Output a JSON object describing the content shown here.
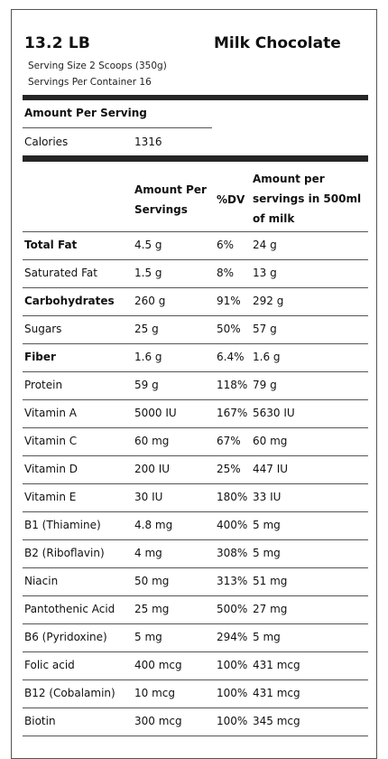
{
  "header": {
    "weight": "13.2 LB",
    "flavor": "Milk Chocolate",
    "serving_size": "Serving Size 2 Scoops (350g)",
    "servings_per_container": "Servings Per Container 16"
  },
  "amount_per_serving_label": "Amount Per Serving",
  "calories": {
    "label": "Calories",
    "value": "1316"
  },
  "columns": {
    "amount": [
      "Amount Per",
      "Servings"
    ],
    "dv": "%DV",
    "milk": [
      "Amount per",
      "servings in 500ml",
      "of milk"
    ]
  },
  "rows": [
    {
      "name": "Total Fat",
      "amount": "4.5 g",
      "dv": "6%",
      "milk": "24 g",
      "bold": true
    },
    {
      "name": "Saturated Fat",
      "amount": "1.5 g",
      "dv": "8%",
      "milk": "13 g",
      "bold": false
    },
    {
      "name": "Carbohydrates",
      "amount": "260 g",
      "dv": "91%",
      "milk": "292 g",
      "bold": true
    },
    {
      "name": "Sugars",
      "amount": "25 g",
      "dv": "50%",
      "milk": "57 g",
      "bold": false
    },
    {
      "name": "Fiber",
      "amount": "1.6 g",
      "dv": "6.4%",
      "milk": "1.6 g",
      "bold": true
    },
    {
      "name": "Protein",
      "amount": "59 g",
      "dv": "118%",
      "milk": "79 g",
      "bold": false
    },
    {
      "name": "Vitamin A",
      "amount": "5000 IU",
      "dv": "167%",
      "milk": "5630 IU",
      "bold": false
    },
    {
      "name": "Vitamin C",
      "amount": "60 mg",
      "dv": "67%",
      "milk": "60 mg",
      "bold": false
    },
    {
      "name": "Vitamin D",
      "amount": "200 IU",
      "dv": "25%",
      "milk": "447 IU",
      "bold": false
    },
    {
      "name": "Vitamin E",
      "amount": "30 IU",
      "dv": "180%",
      "milk": "33 IU",
      "bold": false
    },
    {
      "name": "B1 (Thiamine)",
      "amount": "4.8 mg",
      "dv": "400%",
      "milk": "5 mg",
      "bold": false
    },
    {
      "name": "B2 (Riboflavin)",
      "amount": "4 mg",
      "dv": "308%",
      "milk": "5 mg",
      "bold": false
    },
    {
      "name": "Niacin",
      "amount": "50 mg",
      "dv": "313%",
      "milk": "51 mg",
      "bold": false
    },
    {
      "name": "Pantothenic Acid",
      "amount": "25 mg",
      "dv": "500%",
      "milk": "27 mg",
      "bold": false
    },
    {
      "name": "B6 (Pyridoxine)",
      "amount": "5 mg",
      "dv": "294%",
      "milk": "5 mg",
      "bold": false
    },
    {
      "name": "Folic acid",
      "amount": "400 mcg",
      "dv": "100%",
      "milk": "431 mcg",
      "bold": false
    },
    {
      "name": "B12 (Cobalamin)",
      "amount": "10 mcg",
      "dv": "100%",
      "milk": "431 mcg",
      "bold": false
    },
    {
      "name": "Biotin",
      "amount": "300 mcg",
      "dv": "100%",
      "milk": "345 mcg",
      "bold": false
    }
  ]
}
